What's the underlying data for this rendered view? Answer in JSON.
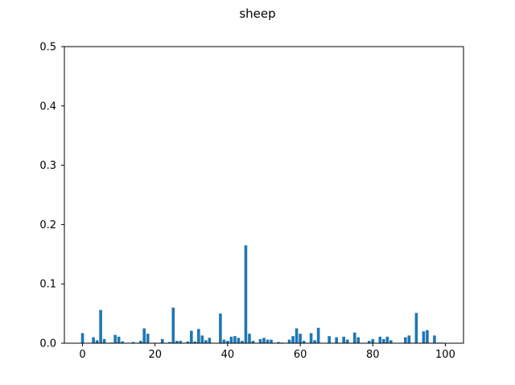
{
  "chart_data": {
    "type": "bar",
    "title": "sheep",
    "xlabel": "",
    "ylabel": "",
    "xlim": [
      -5.0,
      105.0
    ],
    "ylim": [
      0,
      0.5
    ],
    "x_ticks": [
      0,
      20,
      40,
      60,
      80,
      100
    ],
    "y_ticks": [
      0.0,
      0.1,
      0.2,
      0.3,
      0.4,
      0.5
    ],
    "y_tick_labels": [
      "0.0",
      "0.1",
      "0.2",
      "0.3",
      "0.4",
      "0.5"
    ],
    "grid": false,
    "bar_color": "#1f77b4",
    "x": [
      0,
      1,
      2,
      3,
      4,
      5,
      6,
      7,
      8,
      9,
      10,
      11,
      12,
      13,
      14,
      15,
      16,
      17,
      18,
      19,
      20,
      21,
      22,
      23,
      24,
      25,
      26,
      27,
      28,
      29,
      30,
      31,
      32,
      33,
      34,
      35,
      36,
      37,
      38,
      39,
      40,
      41,
      42,
      43,
      44,
      45,
      46,
      47,
      48,
      49,
      50,
      51,
      52,
      53,
      54,
      55,
      56,
      57,
      58,
      59,
      60,
      61,
      62,
      63,
      64,
      65,
      66,
      67,
      68,
      69,
      70,
      71,
      72,
      73,
      74,
      75,
      76,
      77,
      78,
      79,
      80,
      81,
      82,
      83,
      84,
      85,
      86,
      87,
      88,
      89,
      90,
      91,
      92,
      93,
      94,
      95,
      96,
      97,
      98,
      99,
      100
    ],
    "values": [
      0.017,
      0.0,
      0.0,
      0.01,
      0.005,
      0.056,
      0.007,
      0.0,
      0.001,
      0.014,
      0.011,
      0.003,
      0.0,
      0.0,
      0.002,
      0.0,
      0.004,
      0.025,
      0.016,
      0.0,
      0.0,
      0.0,
      0.007,
      0.0,
      0.002,
      0.06,
      0.004,
      0.004,
      0.0,
      0.003,
      0.021,
      0.003,
      0.024,
      0.013,
      0.005,
      0.009,
      0.0,
      0.0,
      0.05,
      0.006,
      0.004,
      0.011,
      0.012,
      0.009,
      0.004,
      0.165,
      0.016,
      0.004,
      0.0,
      0.007,
      0.009,
      0.006,
      0.006,
      0.0,
      0.002,
      0.001,
      0.0,
      0.006,
      0.012,
      0.025,
      0.016,
      0.004,
      0.0,
      0.017,
      0.005,
      0.026,
      0.0,
      0.0,
      0.012,
      0.0,
      0.01,
      0.0,
      0.011,
      0.006,
      0.0,
      0.018,
      0.01,
      0.0,
      0.0,
      0.004,
      0.007,
      0.0,
      0.011,
      0.007,
      0.011,
      0.005,
      0.0,
      0.0,
      0.0,
      0.01,
      0.013,
      0.0,
      0.051,
      0.0,
      0.02,
      0.022,
      0.0,
      0.013,
      0.001,
      0.001,
      0.0
    ]
  }
}
